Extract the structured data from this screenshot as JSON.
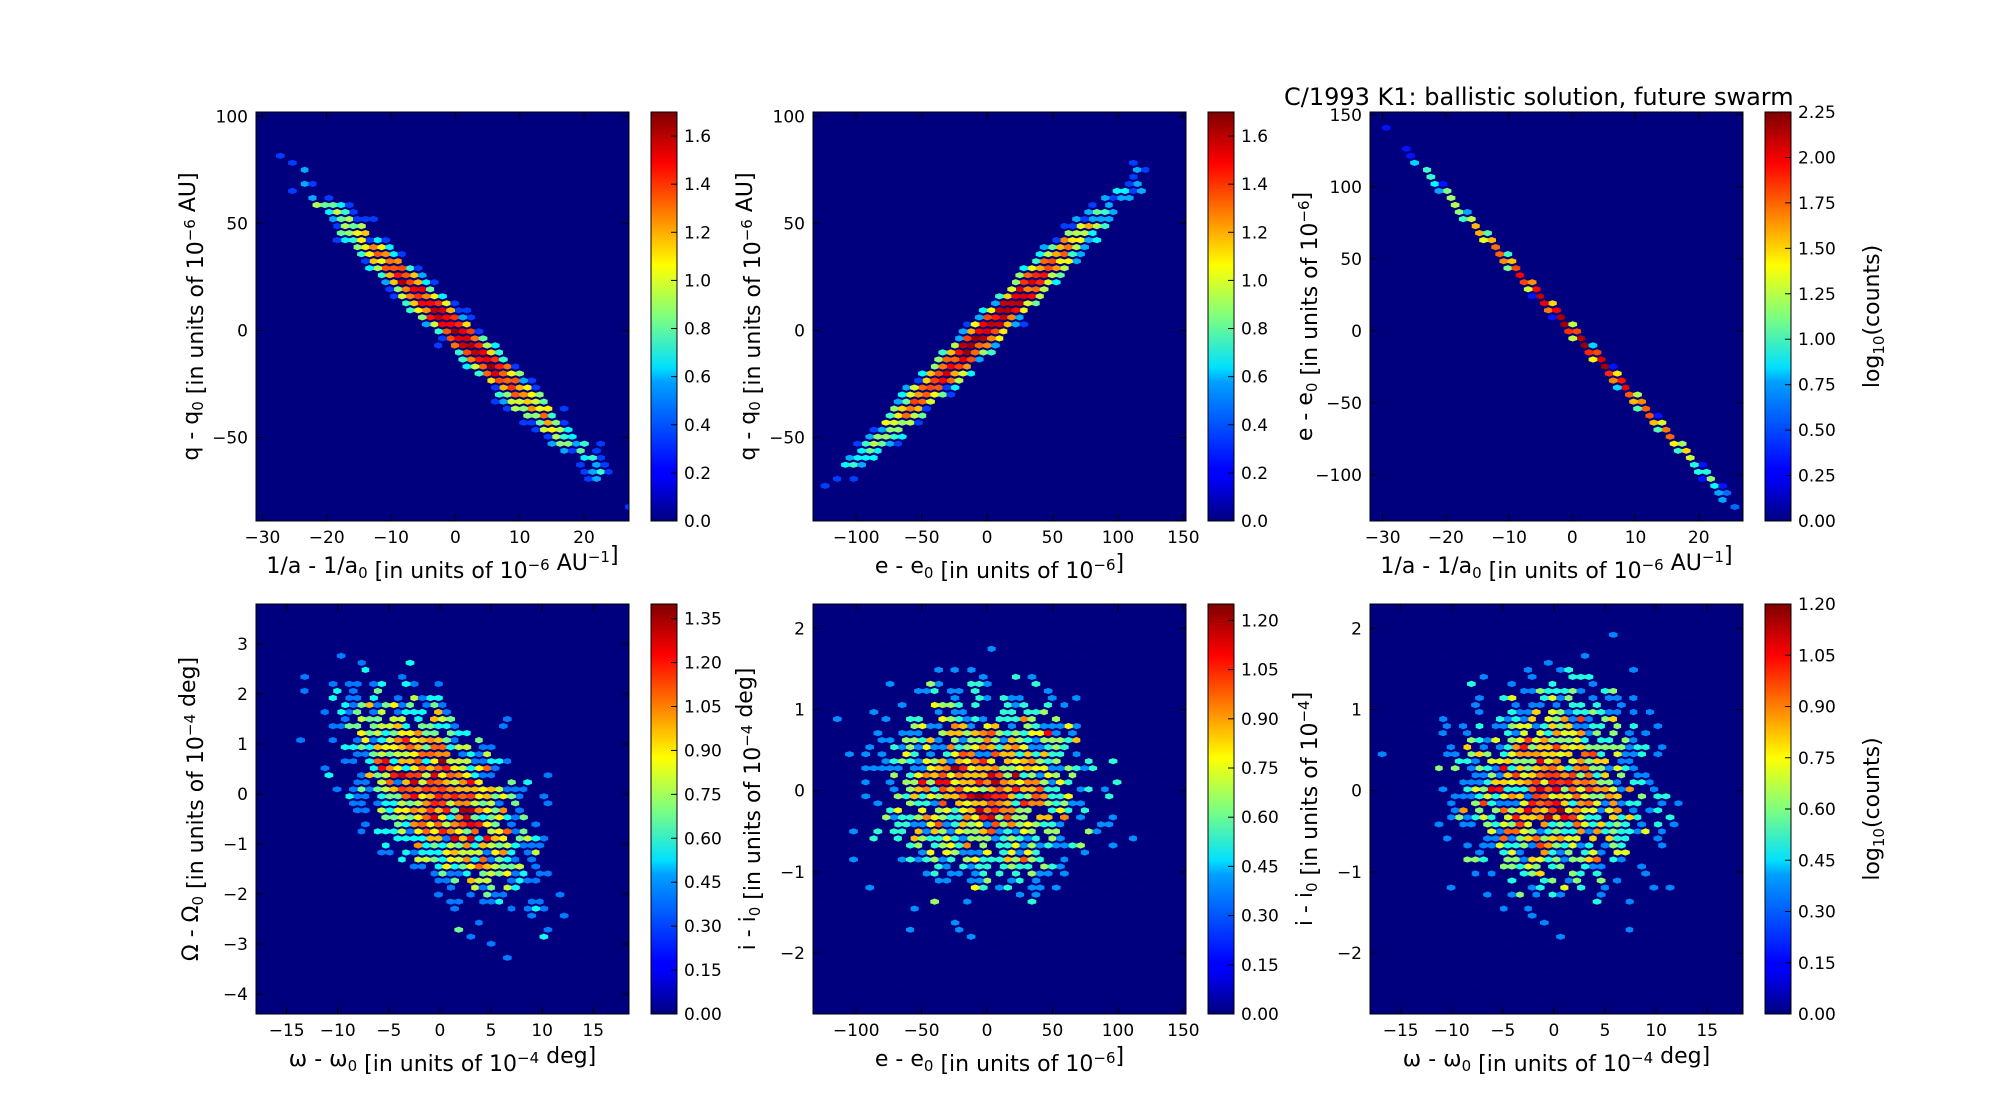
{
  "title": "C/1993 K1:  ballistic solution, future swarm",
  "colors": {
    "background": "#00007F",
    "colormap": [
      "#00007F",
      "#0000FF",
      "#007FFF",
      "#00FFFF",
      "#7FFF7F",
      "#FFFF00",
      "#FF7F00",
      "#FF0000",
      "#7F0000"
    ]
  },
  "chart_data": [
    {
      "type": "heatmap",
      "variant": "hexbin",
      "xlabel": "1/a - 1/a0 [in units of 10^-6 AU^-1]",
      "ylabel": "q - q0 [in units of 10^-6 AU]",
      "xlim": [
        -31,
        27
      ],
      "ylim": [
        -89,
        102
      ],
      "xticks": [
        -30,
        -20,
        -10,
        0,
        10,
        20
      ],
      "yticks": [
        -50,
        0,
        50,
        100
      ],
      "xtick_labels": [
        "−30",
        "−20",
        "−10",
        "0",
        "10",
        "20"
      ],
      "ytick_labels": [
        "−50",
        "0",
        "50",
        "100"
      ],
      "distribution": {
        "x_center": 0,
        "y_center": 0,
        "x_sd": 9.5,
        "y_sd": 28,
        "correlation": -0.985,
        "samples": 2600,
        "seed": 11
      },
      "colorbar": {
        "range": [
          0.0,
          1.7
        ],
        "ticks": [
          0.0,
          0.2,
          0.4,
          0.6,
          0.8,
          1.0,
          1.2,
          1.4,
          1.6
        ],
        "tick_labels": [
          "0.0",
          "0.2",
          "0.4",
          "0.6",
          "0.8",
          "1.0",
          "1.2",
          "1.4",
          "1.6"
        ],
        "label": ""
      }
    },
    {
      "type": "heatmap",
      "variant": "hexbin",
      "xlabel": "e - e0 [in units of 10^-6]",
      "ylabel": "q - q0 [in units of 10^-6 AU]",
      "xlim": [
        -133,
        152
      ],
      "ylim": [
        -89,
        102
      ],
      "xticks": [
        -100,
        -50,
        0,
        50,
        100,
        150
      ],
      "yticks": [
        -50,
        0,
        50,
        100
      ],
      "xtick_labels": [
        "−100",
        "−50",
        "0",
        "50",
        "100",
        "150"
      ],
      "ytick_labels": [
        "−50",
        "0",
        "50",
        "100"
      ],
      "distribution": {
        "x_center": 0,
        "y_center": 0,
        "x_sd": 45,
        "y_sd": 28,
        "correlation": 0.985,
        "samples": 2600,
        "seed": 23
      },
      "colorbar": {
        "range": [
          0.0,
          1.7
        ],
        "ticks": [
          0.0,
          0.2,
          0.4,
          0.6,
          0.8,
          1.0,
          1.2,
          1.4,
          1.6
        ],
        "tick_labels": [
          "0.0",
          "0.2",
          "0.4",
          "0.6",
          "0.8",
          "1.0",
          "1.2",
          "1.4",
          "1.6"
        ],
        "label": ""
      }
    },
    {
      "type": "heatmap",
      "variant": "hexbin",
      "xlabel": "1/a - 1/a0 [in units of 10^-6 AU^-1]",
      "ylabel": "e - e0 [in units of 10^-6]",
      "xlim": [
        -32,
        27
      ],
      "ylim": [
        -132,
        152
      ],
      "xticks": [
        -30,
        -20,
        -10,
        0,
        10,
        20
      ],
      "yticks": [
        -100,
        -50,
        0,
        50,
        100,
        150
      ],
      "xtick_labels": [
        "−30",
        "−20",
        "−10",
        "0",
        "10",
        "20"
      ],
      "ytick_labels": [
        "−100",
        "−50",
        "0",
        "50",
        "100",
        "150"
      ],
      "distribution": {
        "x_center": 0,
        "y_center": 0,
        "x_sd": 9.5,
        "y_sd": 45,
        "correlation": -0.9999,
        "samples": 2600,
        "seed": 37
      },
      "colorbar": {
        "range": [
          0.0,
          2.25
        ],
        "ticks": [
          0.0,
          0.25,
          0.5,
          0.75,
          1.0,
          1.25,
          1.5,
          1.75,
          2.0,
          2.25
        ],
        "tick_labels": [
          "0.00",
          "0.25",
          "0.50",
          "0.75",
          "1.00",
          "1.25",
          "1.50",
          "1.75",
          "2.00",
          "2.25"
        ],
        "label": "log10(counts)"
      }
    },
    {
      "type": "heatmap",
      "variant": "hexbin",
      "xlabel": "ω - ω0 [in units of 10^-4 deg]",
      "ylabel": "Ω - Ω0 [in units of 10^-4 deg]",
      "xlim": [
        -18,
        18.5
      ],
      "ylim": [
        -4.4,
        3.8
      ],
      "xticks": [
        -15,
        -10,
        -5,
        0,
        5,
        10,
        15
      ],
      "yticks": [
        -4,
        -3,
        -2,
        -1,
        0,
        1,
        2,
        3
      ],
      "xtick_labels": [
        "−15",
        "−10",
        "−5",
        "0",
        "5",
        "10",
        "15"
      ],
      "ytick_labels": [
        "−4",
        "−3",
        "−2",
        "−1",
        "0",
        "1",
        "2",
        "3"
      ],
      "distribution": {
        "x_center": 0,
        "y_center": 0,
        "x_sd": 5,
        "y_sd": 1.15,
        "correlation": -0.6,
        "samples": 2600,
        "seed": 41
      },
      "colorbar": {
        "range": [
          0.0,
          1.4
        ],
        "ticks": [
          0.0,
          0.15,
          0.3,
          0.45,
          0.6,
          0.75,
          0.9,
          1.05,
          1.2,
          1.35
        ],
        "tick_labels": [
          "0.00",
          "0.15",
          "0.30",
          "0.45",
          "0.60",
          "0.75",
          "0.90",
          "1.05",
          "1.20",
          "1.35"
        ],
        "label": ""
      }
    },
    {
      "type": "heatmap",
      "variant": "hexbin",
      "xlabel": "e - e0 [in units of 10^-6]",
      "ylabel": "i - i0 [in units of 10^-4 deg]",
      "xlim": [
        -133,
        152
      ],
      "ylim": [
        -2.75,
        2.3
      ],
      "xticks": [
        -100,
        -50,
        0,
        50,
        100,
        150
      ],
      "yticks": [
        -2,
        -1,
        0,
        1,
        2
      ],
      "xtick_labels": [
        "−100",
        "−50",
        "0",
        "50",
        "100",
        "150"
      ],
      "ytick_labels": [
        "−2",
        "−1",
        "0",
        "1",
        "2"
      ],
      "distribution": {
        "x_center": 0,
        "y_center": 0,
        "x_sd": 45,
        "y_sd": 0.7,
        "correlation": 0.0,
        "samples": 2600,
        "seed": 53
      },
      "colorbar": {
        "range": [
          0.0,
          1.25
        ],
        "ticks": [
          0.0,
          0.15,
          0.3,
          0.45,
          0.6,
          0.75,
          0.9,
          1.05,
          1.2
        ],
        "tick_labels": [
          "0.00",
          "0.15",
          "0.30",
          "0.45",
          "0.60",
          "0.75",
          "0.90",
          "1.05",
          "1.20"
        ],
        "label": ""
      }
    },
    {
      "type": "heatmap",
      "variant": "hexbin",
      "xlabel": "ω - ω0 [in units of 10^-4 deg]",
      "ylabel": "i - i0 [in units of 10^-4]",
      "xlim": [
        -18,
        18.5
      ],
      "ylim": [
        -2.75,
        2.3
      ],
      "xticks": [
        -15,
        -10,
        -5,
        0,
        5,
        10,
        15
      ],
      "yticks": [
        -2,
        -1,
        0,
        1,
        2
      ],
      "xtick_labels": [
        "−15",
        "−10",
        "−5",
        "0",
        "5",
        "10",
        "15"
      ],
      "ytick_labels": [
        "−2",
        "−1",
        "0",
        "1",
        "2"
      ],
      "distribution": {
        "x_center": 0,
        "y_center": 0,
        "x_sd": 5,
        "y_sd": 0.7,
        "correlation": 0.0,
        "samples": 2600,
        "seed": 67
      },
      "colorbar": {
        "range": [
          0.0,
          1.2
        ],
        "ticks": [
          0.0,
          0.15,
          0.3,
          0.45,
          0.6,
          0.75,
          0.9,
          1.05,
          1.2
        ],
        "tick_labels": [
          "0.00",
          "0.15",
          "0.30",
          "0.45",
          "0.60",
          "0.75",
          "0.90",
          "1.05",
          "1.20"
        ],
        "label": "log10(counts)"
      }
    }
  ]
}
